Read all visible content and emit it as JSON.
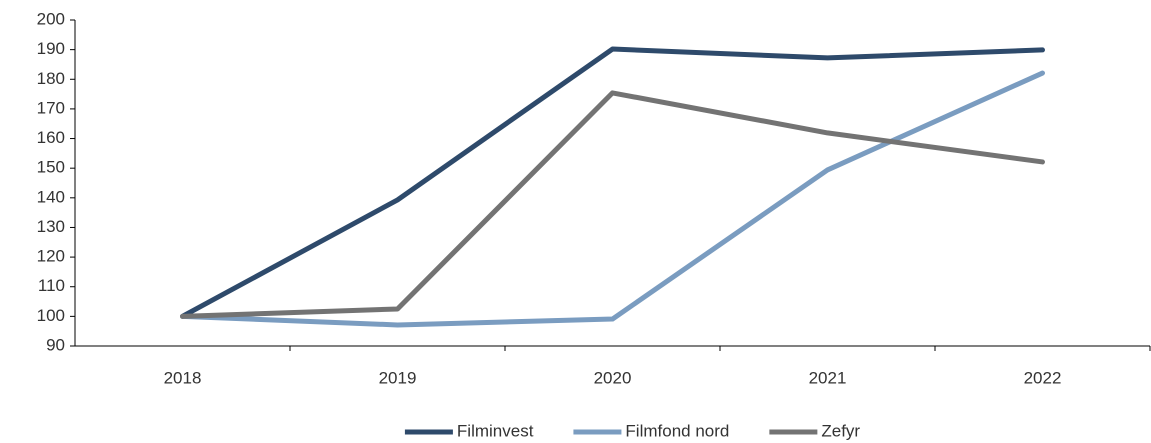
{
  "chart_data": {
    "type": "line",
    "categories": [
      "2018",
      "2019",
      "2020",
      "2021",
      "2022"
    ],
    "series": [
      {
        "name": "Filminvest",
        "color": "#2e4a6b",
        "values": [
          100,
          139.3,
          190.2,
          187.2,
          189.9
        ]
      },
      {
        "name": "Filmfond nord",
        "color": "#7a9cc0",
        "values": [
          100,
          97.1,
          99.1,
          149.4,
          182.1
        ]
      },
      {
        "name": "Zefyr",
        "color": "#737373",
        "values": [
          100,
          102.5,
          175.4,
          161.9,
          152.1
        ]
      }
    ],
    "ylim": [
      90,
      200
    ],
    "yticks": [
      90,
      100,
      110,
      120,
      130,
      140,
      150,
      160,
      170,
      180,
      190,
      200
    ],
    "grid": false,
    "legend": "bottom"
  }
}
